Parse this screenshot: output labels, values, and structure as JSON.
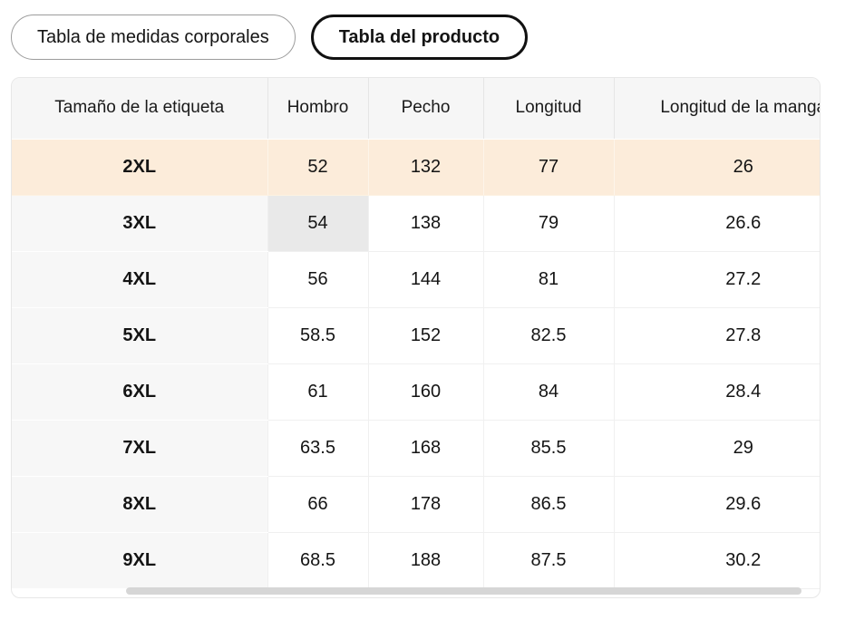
{
  "tabs": [
    {
      "label": "Tabla de medidas corporales",
      "active": false
    },
    {
      "label": "Tabla del producto",
      "active": true
    }
  ],
  "table": {
    "columns": [
      "Tamaño de la etiqueta",
      "Hombro",
      "Pecho",
      "Longitud",
      "Longitud de la manga"
    ],
    "rows": [
      {
        "size": "2XL",
        "values": [
          "52",
          "132",
          "77",
          "26"
        ],
        "highlighted": true
      },
      {
        "size": "3XL",
        "values": [
          "54",
          "138",
          "79",
          "26.6"
        ],
        "hover_cell": 0
      },
      {
        "size": "4XL",
        "values": [
          "56",
          "144",
          "81",
          "27.2"
        ]
      },
      {
        "size": "5XL",
        "values": [
          "58.5",
          "152",
          "82.5",
          "27.8"
        ]
      },
      {
        "size": "6XL",
        "values": [
          "61",
          "160",
          "84",
          "28.4"
        ]
      },
      {
        "size": "7XL",
        "values": [
          "63.5",
          "168",
          "85.5",
          "29"
        ]
      },
      {
        "size": "8XL",
        "values": [
          "66",
          "178",
          "86.5",
          "29.6"
        ]
      },
      {
        "size": "9XL",
        "values": [
          "68.5",
          "188",
          "87.5",
          "30.2"
        ]
      }
    ]
  },
  "colors": {
    "highlight_row_bg": "#fcecda",
    "hover_cell_bg": "#e9e9e9",
    "header_bg": "#f6f6f6",
    "size_column_bg": "#f7f7f7",
    "active_tab_border": "#111111",
    "scrollbar_thumb": "#d6d6d6"
  }
}
